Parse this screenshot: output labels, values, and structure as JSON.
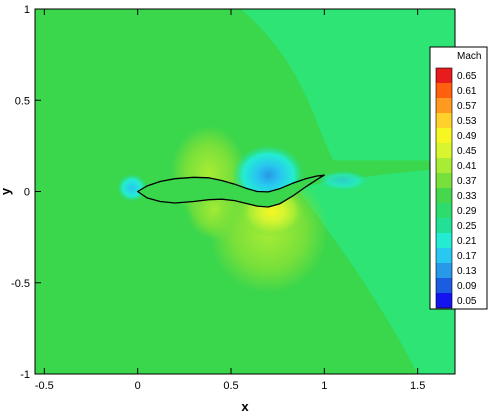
{
  "chart_data": {
    "type": "heatmap",
    "title": "",
    "xlabel": "x",
    "ylabel": "y",
    "xlim": [
      -0.55,
      1.7
    ],
    "ylim": [
      -1.0,
      1.0
    ],
    "x_ticks": [
      "-0.5",
      "0",
      "0.5",
      "1",
      "1.5"
    ],
    "y_ticks": [
      "1",
      "0.5",
      "0",
      "-0.5",
      "-1"
    ],
    "x_tick_values": [
      -0.5,
      0,
      0.5,
      1,
      1.5
    ],
    "y_tick_values": [
      1,
      0.5,
      0,
      -0.5,
      -1
    ],
    "grid": false,
    "legend_placement": "right",
    "colorbar": {
      "title": "Mach",
      "levels": [
        "0.65",
        "0.61",
        "0.57",
        "0.53",
        "0.49",
        "0.45",
        "0.41",
        "0.37",
        "0.33",
        "0.29",
        "0.25",
        "0.21",
        "0.17",
        "0.13",
        "0.09",
        "0.05"
      ],
      "level_values": [
        0.65,
        0.61,
        0.57,
        0.53,
        0.49,
        0.45,
        0.41,
        0.37,
        0.33,
        0.29,
        0.25,
        0.21,
        0.17,
        0.13,
        0.09,
        0.05
      ],
      "colors": [
        "#e81c1c",
        "#ff6010",
        "#ff9a20",
        "#ffd12a",
        "#f6f722",
        "#d8f530",
        "#a8ec35",
        "#78e03a",
        "#45d84e",
        "#2edc6e",
        "#22e096",
        "#24ecd2",
        "#28c8f0",
        "#2898e8",
        "#1c5ce0",
        "#1414f0"
      ]
    },
    "airfoil": {
      "upper_surface": [
        [
          0.0,
          0.0
        ],
        [
          0.05,
          0.03
        ],
        [
          0.12,
          0.055
        ],
        [
          0.2,
          0.07
        ],
        [
          0.3,
          0.078
        ],
        [
          0.38,
          0.075
        ],
        [
          0.45,
          0.06
        ],
        [
          0.52,
          0.04
        ],
        [
          0.58,
          0.018
        ],
        [
          0.64,
          0.0
        ],
        [
          0.7,
          -0.002
        ],
        [
          0.76,
          0.015
        ],
        [
          0.83,
          0.045
        ],
        [
          0.9,
          0.07
        ],
        [
          0.96,
          0.085
        ],
        [
          1.0,
          0.09
        ]
      ],
      "lower_surface": [
        [
          0.0,
          0.0
        ],
        [
          0.05,
          -0.035
        ],
        [
          0.12,
          -0.055
        ],
        [
          0.2,
          -0.063
        ],
        [
          0.3,
          -0.055
        ],
        [
          0.38,
          -0.045
        ],
        [
          0.45,
          -0.042
        ],
        [
          0.52,
          -0.05
        ],
        [
          0.58,
          -0.065
        ],
        [
          0.64,
          -0.08
        ],
        [
          0.7,
          -0.085
        ],
        [
          0.76,
          -0.068
        ],
        [
          0.83,
          -0.025
        ],
        [
          0.9,
          0.025
        ],
        [
          0.96,
          0.065
        ],
        [
          1.0,
          0.09
        ]
      ]
    },
    "field": {
      "background_mach": 0.33,
      "background_color": "#3ad64c",
      "far_region_mach": 0.29,
      "far_region_color": "#2ee474",
      "contour_regions": [
        {
          "name": "far-field-upper-right",
          "mach": 0.29,
          "color": "#2ee474"
        },
        {
          "name": "far-field-lower-right",
          "mach": 0.29,
          "color": "#2ee474"
        },
        {
          "name": "acceleration-lobe-upper-mid",
          "mach": 0.37,
          "color": "#78e03a"
        },
        {
          "name": "acceleration-lobe-lower-mid",
          "mach": 0.37,
          "color": "#78e03a"
        },
        {
          "name": "suction-peak-lower",
          "mach": 0.45,
          "color": "#d8f530"
        },
        {
          "name": "stagnation-leading-edge",
          "mach": 0.21,
          "color": "#24ecd2"
        },
        {
          "name": "deceleration-upper-aft",
          "mach": 0.21,
          "color": "#24ecd2"
        },
        {
          "name": "deceleration-core-upper-aft",
          "mach": 0.13,
          "color": "#2898e8"
        },
        {
          "name": "wake-trailing-edge",
          "mach": 0.25,
          "color": "#22e096"
        }
      ]
    }
  }
}
